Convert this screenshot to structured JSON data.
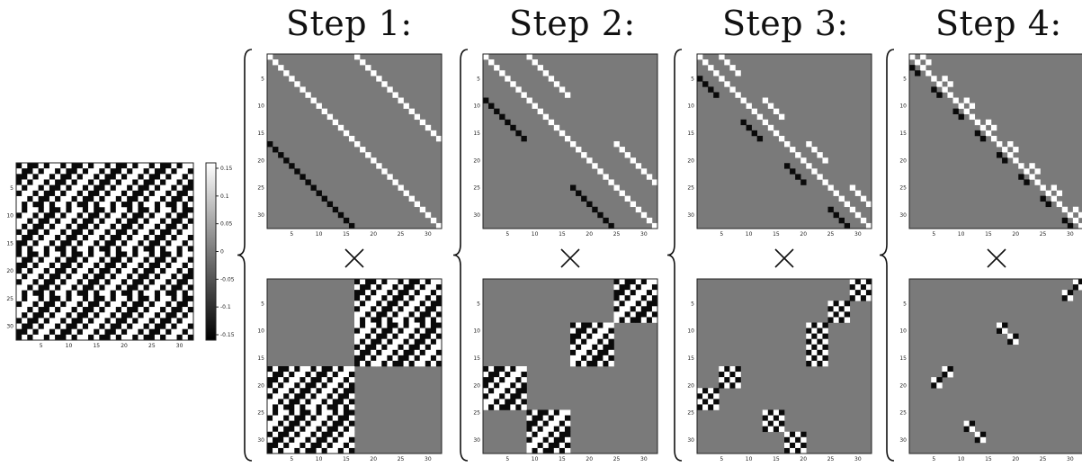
{
  "steps": [
    {
      "title": "Step 1:",
      "top_pattern": "step1-top",
      "bottom_pattern": "step1-bottom"
    },
    {
      "title": "Step 2:",
      "top_pattern": "step2-top",
      "bottom_pattern": "step2-bottom"
    },
    {
      "title": "Step 3:",
      "top_pattern": "step3-top",
      "bottom_pattern": "step3-bottom"
    },
    {
      "title": "Step 4:",
      "top_pattern": "step4-top",
      "bottom_pattern": "step4-bottom"
    }
  ],
  "operator_symbol": "×",
  "colorbar": {
    "ticks": [
      "0.15",
      "0.1",
      "0.05",
      "0",
      "-0.05",
      "-0.1",
      "-0.15"
    ]
  },
  "matrix_ticks": {
    "left_main": [
      "5",
      "10",
      "15",
      "20",
      "25",
      "30"
    ],
    "bottom_main": [
      "5",
      "10",
      "15",
      "20",
      "25",
      "30"
    ],
    "left_panels": [
      "5",
      "10",
      "15",
      "20",
      "25",
      "30"
    ],
    "bottom_panels": [
      "5",
      "10",
      "15",
      "20",
      "25",
      "30"
    ]
  },
  "colors": {
    "grey": "#7a7a7a",
    "white": "#ffffff",
    "black": "#0a0a0a",
    "frame": "#222222"
  }
}
